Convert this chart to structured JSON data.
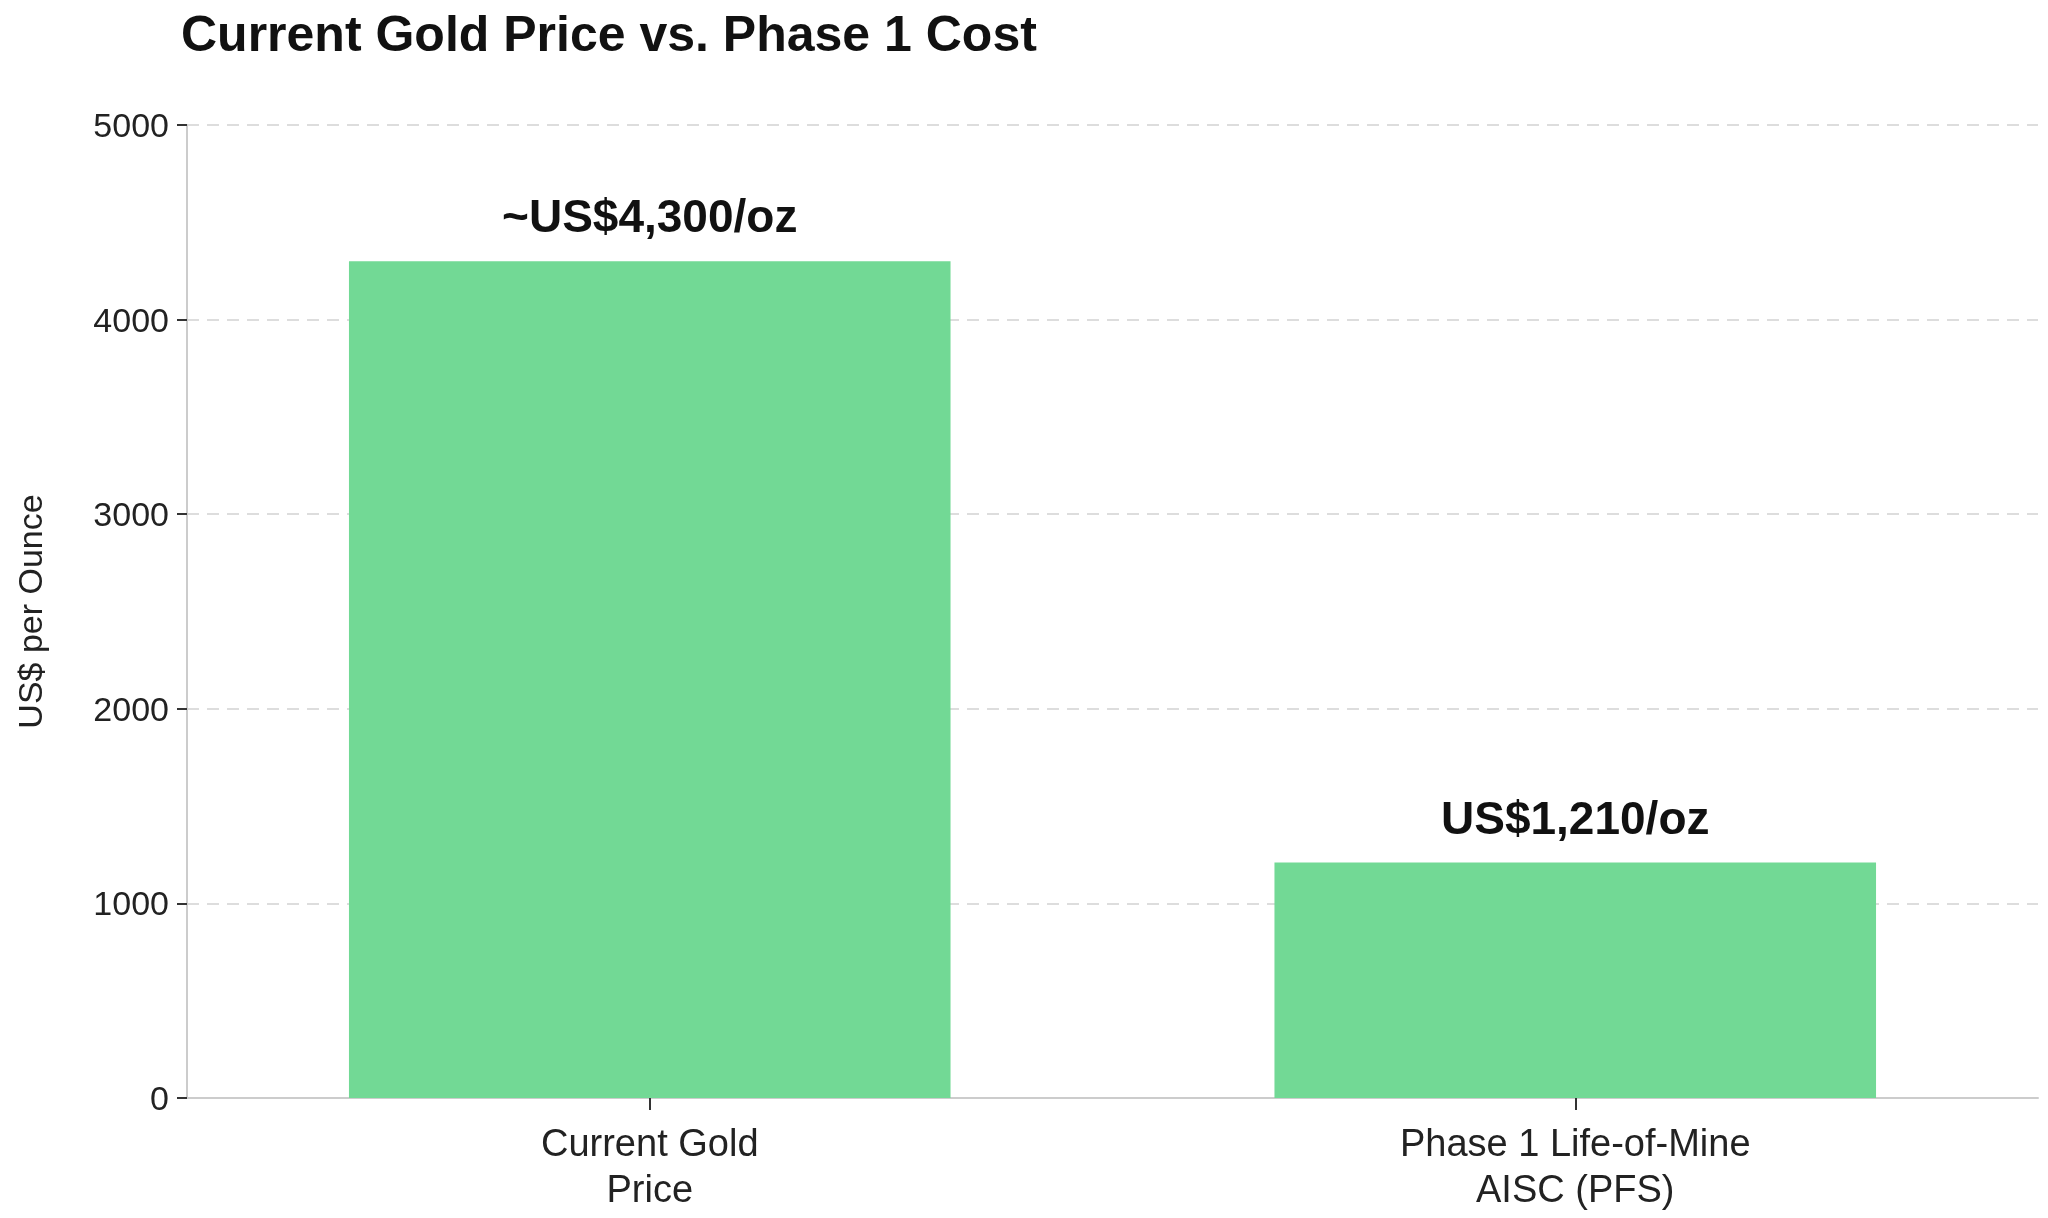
{
  "chart_data": {
    "type": "bar",
    "title": "Current Gold Price vs. Phase 1 Cost",
    "ylabel": "US$ per Ounce",
    "categories": [
      "Current Gold\nPrice",
      "Phase 1 Life-of-Mine\nAISC (PFS)"
    ],
    "values": [
      4300,
      1210
    ],
    "color": "#72d995",
    "value_labels": [
      "~US$4,300/oz",
      "US$1,210/oz"
    ],
    "ylim": [
      0,
      5000
    ],
    "yticks": [
      0,
      1000,
      2000,
      3000,
      4000,
      5000
    ],
    "grid": "y"
  }
}
